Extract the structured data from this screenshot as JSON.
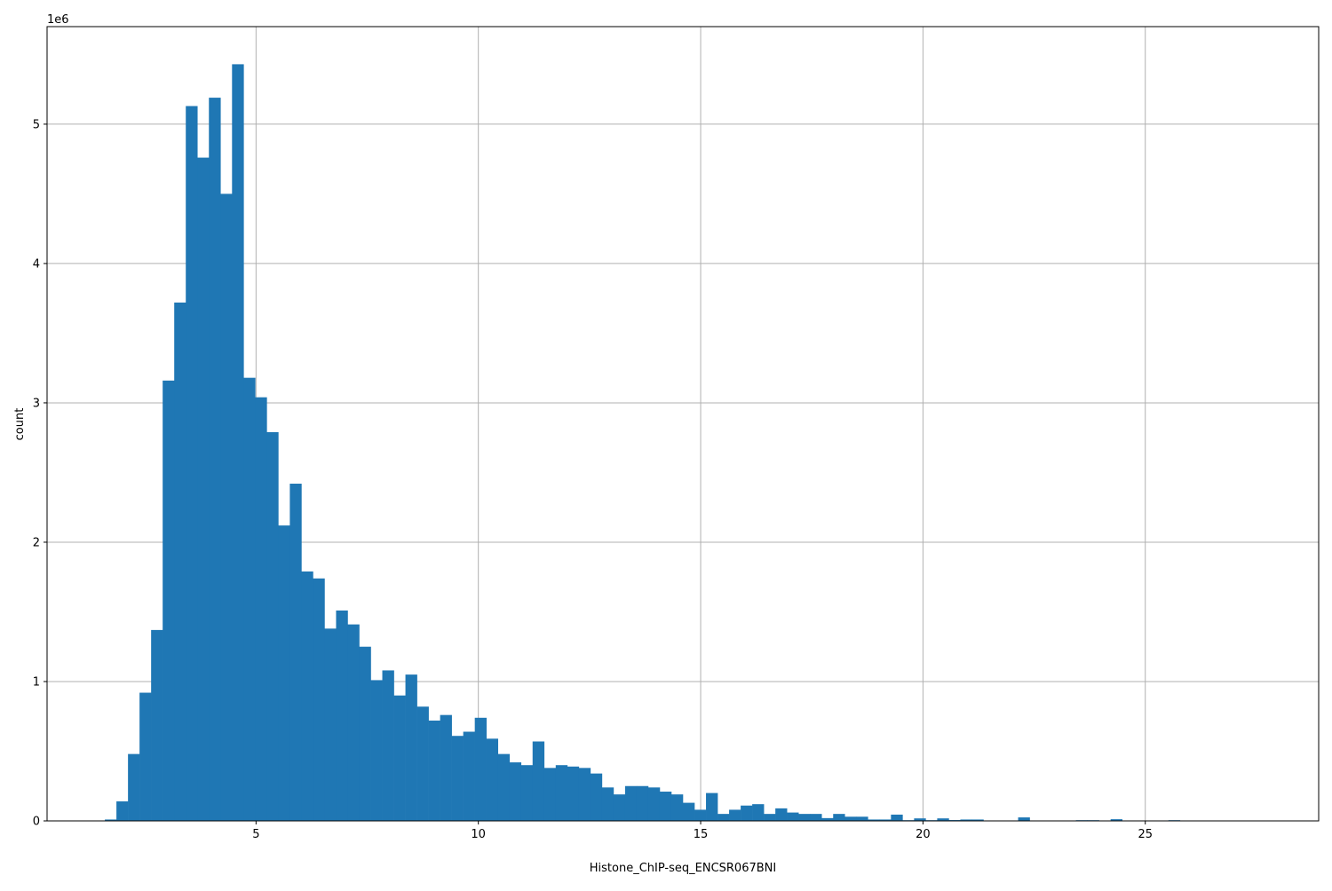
{
  "chart_data": {
    "type": "bar",
    "subtype": "histogram",
    "title": "",
    "xlabel": "Histone_ChIP-seq_ENCSR067BNI",
    "ylabel": "count",
    "y_offset_label": "1e6",
    "xlim": [
      0.3,
      28.9
    ],
    "ylim": [
      0,
      5700000
    ],
    "xticks": [
      5,
      10,
      15,
      20,
      25
    ],
    "yticks": [
      0,
      1000000,
      2000000,
      3000000,
      4000000,
      5000000
    ],
    "ytick_labels": [
      "0",
      "1",
      "2",
      "3",
      "4",
      "5"
    ],
    "xtick_labels": [
      "5",
      "10",
      "15",
      "20",
      "25"
    ],
    "grid": true,
    "bar_color": "#1f77b4",
    "grid_color": "#b0b0b0",
    "bin_start": 1.6,
    "bin_width": 0.26,
    "counts": [
      10000,
      140000,
      480000,
      920000,
      1370000,
      3160000,
      3720000,
      5130000,
      4760000,
      5190000,
      4500000,
      5430000,
      3180000,
      3040000,
      2790000,
      2120000,
      2420000,
      1790000,
      1740000,
      1380000,
      1510000,
      1410000,
      1250000,
      1010000,
      1080000,
      900000,
      1050000,
      820000,
      720000,
      760000,
      610000,
      640000,
      740000,
      590000,
      480000,
      420000,
      400000,
      570000,
      380000,
      400000,
      390000,
      380000,
      340000,
      240000,
      190000,
      250000,
      250000,
      240000,
      210000,
      190000,
      130000,
      80000,
      200000,
      50000,
      80000,
      110000,
      120000,
      50000,
      90000,
      60000,
      50000,
      50000,
      20000,
      50000,
      30000,
      30000,
      10000,
      10000,
      45000,
      5000,
      18000,
      5000,
      18000,
      6000,
      10000,
      10000,
      0,
      0,
      0,
      25000,
      0,
      0,
      0,
      0,
      5000,
      5000,
      0,
      12000,
      0,
      0,
      0,
      0,
      5000,
      0,
      0,
      0,
      0,
      0,
      0,
      0
    ]
  }
}
